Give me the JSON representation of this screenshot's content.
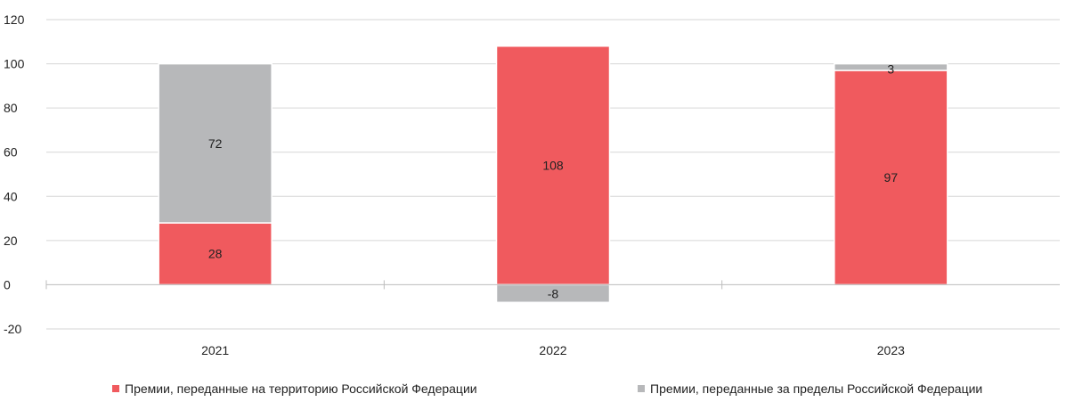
{
  "chart_data": {
    "type": "bar",
    "stacked": true,
    "categories": [
      "2021",
      "2022",
      "2023"
    ],
    "series": [
      {
        "name": "Премии, переданные на территорию Российской Федерации",
        "values": [
          28,
          108,
          97
        ],
        "color": "#f05a5e"
      },
      {
        "name": "Премии, переданные за пределы Российской Федерации",
        "values": [
          72,
          -8,
          3
        ],
        "color": "#b7b8ba"
      }
    ],
    "y_ticks": [
      "-20",
      "0",
      "20",
      "40",
      "60",
      "80",
      "100",
      "120"
    ],
    "ylim": [
      -20,
      120
    ],
    "grid": true,
    "legend_position": "bottom",
    "title": "",
    "xlabel": "",
    "ylabel": ""
  }
}
